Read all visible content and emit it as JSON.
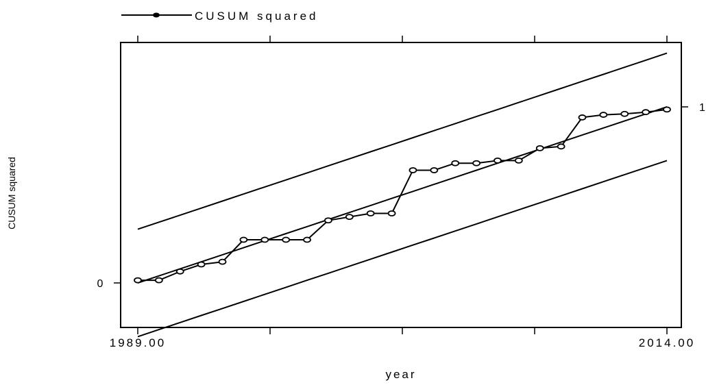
{
  "chart_data": {
    "type": "line",
    "title": "",
    "xlabel": "year",
    "ylabel": "CUSUM squared",
    "xlim": [
      1989,
      2014
    ],
    "ylim": [
      -0.3,
      1.35
    ],
    "x_tick_labels": [
      "1989.00",
      "2014.00"
    ],
    "x_tick_values": [
      1989,
      1995.25,
      2001.5,
      2007.75,
      2014
    ],
    "y_tick_left": {
      "value": 0,
      "label": "0"
    },
    "y_tick_right": {
      "value": 1,
      "label": "1"
    },
    "legend": {
      "position": "top-left",
      "label": "CUSUM squared"
    },
    "x": [
      1989,
      1990,
      1991,
      1992,
      1993,
      1994,
      1995,
      1996,
      1997,
      1998,
      1999,
      2000,
      2001,
      2002,
      2003,
      2004,
      2005,
      2006,
      2007,
      2008,
      2009,
      2010,
      2011,
      2012,
      2013,
      2014
    ],
    "series": [
      {
        "name": "CUSUM squared",
        "role": "statistic",
        "markers": true,
        "values": [
          0.015,
          0.015,
          0.065,
          0.105,
          0.12,
          0.245,
          0.245,
          0.245,
          0.245,
          0.355,
          0.375,
          0.395,
          0.395,
          0.64,
          0.64,
          0.68,
          0.68,
          0.695,
          0.695,
          0.765,
          0.775,
          0.94,
          0.955,
          0.96,
          0.97,
          0.985
        ]
      },
      {
        "role": "expected",
        "markers": false,
        "values": [
          0.0,
          0.04,
          0.08,
          0.12,
          0.16,
          0.2,
          0.24,
          0.28,
          0.32,
          0.36,
          0.4,
          0.44,
          0.48,
          0.52,
          0.56,
          0.6,
          0.64,
          0.68,
          0.72,
          0.76,
          0.8,
          0.84,
          0.88,
          0.92,
          0.96,
          1.0
        ]
      },
      {
        "role": "upper-bound",
        "markers": false,
        "values": [
          0.305,
          0.345,
          0.385,
          0.425,
          0.465,
          0.505,
          0.545,
          0.585,
          0.625,
          0.665,
          0.705,
          0.745,
          0.785,
          0.825,
          0.865,
          0.905,
          0.945,
          0.985,
          1.025,
          1.065,
          1.105,
          1.145,
          1.185,
          1.225,
          1.265,
          1.305
        ]
      },
      {
        "role": "lower-bound",
        "markers": false,
        "values": [
          -0.305,
          -0.265,
          -0.225,
          -0.185,
          -0.145,
          -0.105,
          -0.065,
          -0.025,
          0.015,
          0.055,
          0.095,
          0.135,
          0.175,
          0.215,
          0.255,
          0.295,
          0.335,
          0.375,
          0.415,
          0.455,
          0.495,
          0.535,
          0.575,
          0.615,
          0.655,
          0.695
        ]
      }
    ],
    "colors": {
      "line": "#000000",
      "background": "#ffffff"
    }
  }
}
